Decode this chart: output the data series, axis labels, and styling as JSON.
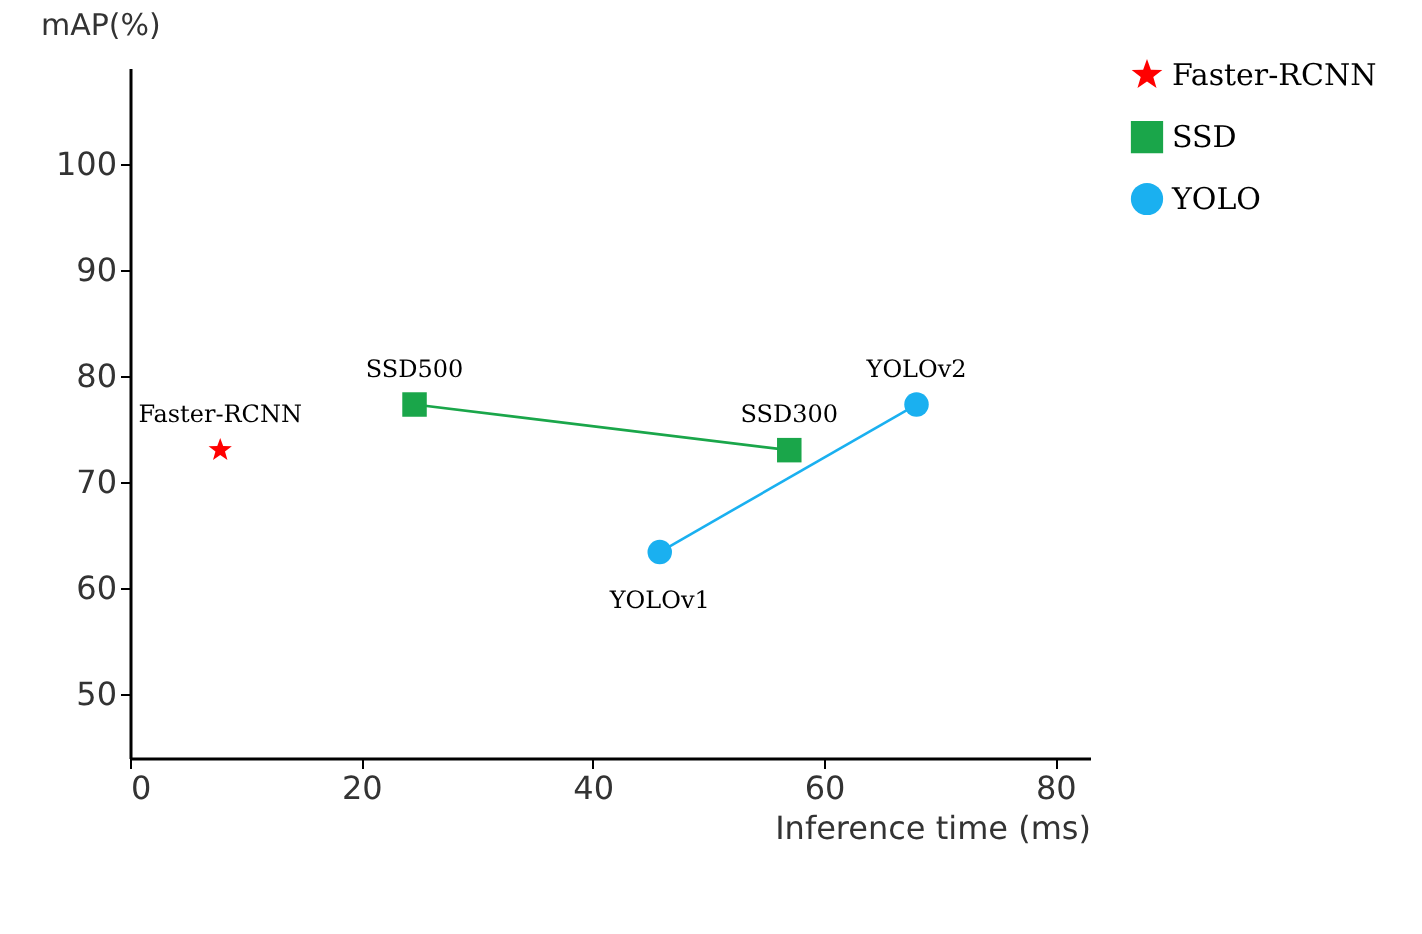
{
  "chart_data": {
    "type": "scatter",
    "xlabel": "Inference time (ms)",
    "ylabel": "mAP(%)",
    "xlim": [
      0,
      83
    ],
    "xticks": [
      0,
      20,
      40,
      60,
      80
    ],
    "ylim": [
      44,
      109
    ],
    "yticks": [
      50,
      60,
      70,
      80,
      90,
      100
    ],
    "grid": false,
    "legend": "top right",
    "series": [
      {
        "name": "Faster-RCNN",
        "marker": "star",
        "color": "#ff0000",
        "x": [
          7.8
        ],
        "values": [
          73
        ]
      },
      {
        "name": "SSD",
        "type": "line",
        "marker": "square",
        "color": "#1aa64a",
        "x": [
          24.6,
          57
        ],
        "values": [
          77.3,
          73
        ]
      },
      {
        "name": "YOLO",
        "type": "line",
        "marker": "circle",
        "color": "#1ab0f0",
        "x": [
          45.8,
          68
        ],
        "values": [
          63.4,
          77.3
        ]
      }
    ],
    "annotations": [
      {
        "text": "Faster-RCNN",
        "x": 7.8,
        "y": 73
      },
      {
        "text": "SSD500",
        "x": 24.6,
        "y": 77.3
      },
      {
        "text": "SSD300",
        "x": 57,
        "y": 73
      },
      {
        "text": "YOLOv1",
        "x": 45.8,
        "y": 63.4
      },
      {
        "text": "YOLOv2",
        "x": 68,
        "y": 77.3
      }
    ]
  }
}
